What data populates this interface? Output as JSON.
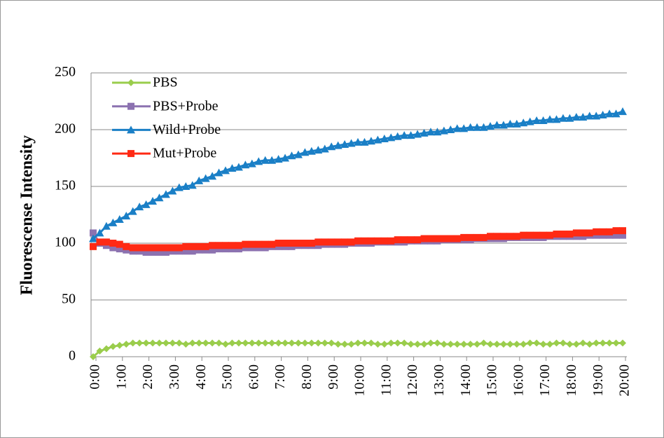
{
  "chart_data": {
    "type": "line",
    "ylabel": "Fluorescense Intensity",
    "categories": [
      "0:00",
      null,
      null,
      null,
      "1:00",
      null,
      null,
      null,
      "2:00",
      null,
      null,
      null,
      "3:00",
      null,
      null,
      null,
      "4:00",
      null,
      null,
      null,
      "5:00",
      null,
      null,
      null,
      "6:00",
      null,
      null,
      null,
      "7:00",
      null,
      null,
      null,
      "8:00",
      null,
      null,
      null,
      "9:00",
      null,
      null,
      null,
      "10:00",
      null,
      null,
      null,
      "11:00",
      null,
      null,
      null,
      "12:00",
      null,
      null,
      null,
      "13:00",
      null,
      null,
      null,
      "14:00",
      null,
      null,
      null,
      "15:00",
      null,
      null,
      null,
      "16:00",
      null,
      null,
      null,
      "17:00",
      null,
      null,
      null,
      "18:00",
      null,
      null,
      null,
      "19:00",
      null,
      null,
      null,
      "20:00"
    ],
    "ylim": [
      0,
      250
    ],
    "yticks": [
      0,
      50,
      100,
      150,
      200,
      250
    ],
    "grid": true,
    "legend": "upper left",
    "series": [
      {
        "name": "PBS",
        "color": "#9acd4c",
        "marker": "diamond",
        "values": [
          0,
          5,
          7,
          9,
          10,
          11,
          12,
          12,
          12,
          12,
          12,
          12,
          12,
          12,
          11,
          12,
          12,
          12,
          12,
          12,
          11,
          12,
          12,
          12,
          12,
          12,
          12,
          12,
          12,
          12,
          12,
          12,
          12,
          12,
          12,
          12,
          12,
          11,
          11,
          11,
          12,
          12,
          12,
          11,
          11,
          12,
          12,
          12,
          11,
          11,
          11,
          12,
          12,
          11,
          11,
          11,
          11,
          11,
          11,
          12,
          11,
          11,
          11,
          11,
          11,
          11,
          12,
          12,
          11,
          11,
          12,
          12,
          11,
          11,
          12,
          11,
          12,
          12,
          12,
          12,
          12
        ]
      },
      {
        "name": "PBS+Probe",
        "color": "#8c72b0",
        "marker": "square",
        "values": [
          109,
          100,
          98,
          96,
          95,
          94,
          93,
          93,
          92,
          92,
          92,
          92,
          93,
          93,
          93,
          93,
          94,
          94,
          94,
          95,
          95,
          95,
          95,
          96,
          96,
          96,
          96,
          97,
          97,
          97,
          97,
          98,
          98,
          98,
          98,
          99,
          99,
          99,
          99,
          100,
          100,
          100,
          100,
          101,
          101,
          101,
          101,
          101,
          102,
          102,
          102,
          102,
          102,
          103,
          103,
          103,
          103,
          103,
          104,
          104,
          104,
          104,
          104,
          105,
          105,
          105,
          105,
          105,
          105,
          106,
          106,
          106,
          106,
          106,
          106,
          107,
          107,
          107,
          107,
          107,
          107
        ]
      },
      {
        "name": "Wild+Probe",
        "color": "#1a7fc6",
        "marker": "triangle",
        "values": [
          104,
          109,
          115,
          118,
          121,
          124,
          128,
          132,
          134,
          137,
          140,
          143,
          146,
          149,
          150,
          151,
          155,
          157,
          159,
          162,
          164,
          166,
          167,
          169,
          170,
          172,
          173,
          173,
          174,
          175,
          177,
          178,
          180,
          181,
          182,
          183,
          185,
          186,
          187,
          188,
          189,
          189,
          190,
          191,
          192,
          193,
          194,
          195,
          195,
          196,
          197,
          198,
          198,
          199,
          200,
          201,
          201,
          202,
          202,
          202,
          203,
          204,
          204,
          205,
          205,
          206,
          207,
          208,
          208,
          209,
          209,
          210,
          210,
          211,
          211,
          212,
          212,
          213,
          214,
          214,
          216
        ]
      },
      {
        "name": "Mut+Probe",
        "color": "#ff2a14",
        "marker": "square",
        "values": [
          97,
          101,
          101,
          100,
          99,
          97,
          96,
          96,
          96,
          96,
          96,
          96,
          96,
          96,
          97,
          97,
          97,
          97,
          98,
          98,
          98,
          98,
          98,
          99,
          99,
          99,
          99,
          99,
          100,
          100,
          100,
          100,
          100,
          100,
          101,
          101,
          101,
          101,
          101,
          101,
          102,
          102,
          102,
          102,
          102,
          102,
          103,
          103,
          103,
          103,
          104,
          104,
          104,
          104,
          104,
          104,
          105,
          105,
          105,
          105,
          106,
          106,
          106,
          106,
          106,
          107,
          107,
          107,
          107,
          107,
          108,
          108,
          108,
          109,
          109,
          109,
          110,
          110,
          110,
          111,
          111
        ]
      }
    ]
  }
}
